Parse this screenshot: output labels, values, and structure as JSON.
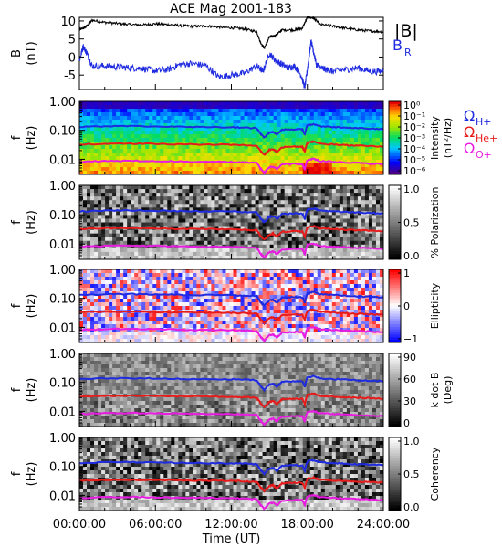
{
  "chart_data": [
    {
      "type": "line",
      "title": "ACE Mag 2001-183",
      "ylabel": "B",
      "yunit": "(nT)",
      "ylim": [
        -9,
        11
      ],
      "yticks": [
        10,
        5,
        0,
        -5
      ],
      "xlim": [
        0,
        24
      ],
      "series": [
        {
          "name": "|B|",
          "color": "#000000",
          "x": [
            0,
            0.5,
            1,
            2,
            3,
            4,
            5,
            6,
            7,
            8,
            9,
            10,
            11,
            12,
            13,
            14,
            14.3,
            14.6,
            15,
            15.5,
            16,
            17,
            17.6,
            18,
            18.5,
            19,
            20,
            21,
            22,
            23,
            24
          ],
          "y": [
            7.5,
            8.3,
            10.2,
            9.6,
            9.3,
            9.0,
            8.9,
            9.2,
            9.0,
            8.7,
            8.5,
            8.6,
            8.3,
            8.1,
            7.8,
            7.0,
            4.0,
            2.5,
            5.5,
            6.0,
            7.5,
            7.5,
            8.0,
            11.0,
            10.8,
            9.0,
            8.6,
            8.0,
            7.5,
            7.2,
            7.0
          ]
        },
        {
          "name": "B",
          "subscript": "R",
          "color": "#1f2be0",
          "x": [
            0,
            0.3,
            0.6,
            1,
            2,
            3,
            4,
            5,
            6,
            7,
            8,
            9,
            10,
            11,
            12,
            13,
            14,
            14.5,
            15,
            15.5,
            16,
            16.5,
            17,
            17.5,
            17.8,
            18,
            18.3,
            18.7,
            19,
            19.5,
            20,
            21,
            22,
            23,
            24
          ],
          "y": [
            -1,
            3,
            1,
            -2.5,
            -2.5,
            -2.8,
            -3.0,
            -3.2,
            -3.8,
            -3.5,
            -2.0,
            -1.8,
            -2.5,
            -5.5,
            -5.0,
            -4.5,
            -2.5,
            -4.0,
            1.0,
            -1.0,
            -2.0,
            -3.0,
            -2.5,
            -5.0,
            -8.5,
            -3.5,
            4.5,
            -2.0,
            -3.0,
            -3.5,
            -4.0,
            -3.5,
            -3.0,
            -4.0,
            -4.0
          ]
        }
      ],
      "legend": [
        "|B|",
        "B"
      ],
      "legend_placement": "right"
    },
    {
      "type": "heatmap",
      "ylabel": "f",
      "yunit": "(Hz)",
      "ylim": [
        0.003,
        1.0
      ],
      "yscale": "log",
      "yticks": [
        "1.00",
        "0.10",
        "0.01"
      ],
      "colorbar_label": "Intensity",
      "colorbar_unit": "(nT²/Hz)",
      "colorbar_ticks": [
        "10⁰",
        "10⁻¹",
        "10⁻²",
        "10⁻³",
        "10⁻⁴",
        "10⁻⁵",
        "10⁻⁶"
      ],
      "colormap": "rainbow"
    },
    {
      "type": "heatmap",
      "ylabel": "f",
      "yunit": "(Hz)",
      "ylim": [
        0.003,
        1.0
      ],
      "yscale": "log",
      "yticks": [
        "1.00",
        "0.10",
        "0.01"
      ],
      "colorbar_label": "% Polarization",
      "colorbar_ticks": [
        "1.0",
        "0.5",
        "0.0"
      ],
      "colormap": "gray"
    },
    {
      "type": "heatmap",
      "ylabel": "f",
      "yunit": "(Hz)",
      "ylim": [
        0.003,
        1.0
      ],
      "yscale": "log",
      "yticks": [
        "1.00",
        "0.10",
        "0.01"
      ],
      "colorbar_label": "Ellipticity",
      "colorbar_ticks": [
        "1",
        "0",
        "−1"
      ],
      "colormap": "bwr"
    },
    {
      "type": "heatmap",
      "ylabel": "f",
      "yunit": "(Hz)",
      "ylim": [
        0.003,
        1.0
      ],
      "yscale": "log",
      "yticks": [
        "1.00",
        "0.10",
        "0.01"
      ],
      "colorbar_label": "k dot B",
      "colorbar_unit": "(Deg)",
      "colorbar_ticks": [
        "90",
        "60",
        "30",
        "0"
      ],
      "colormap": "gray"
    },
    {
      "type": "heatmap",
      "ylabel": "f",
      "yunit": "(Hz)",
      "ylim": [
        0.003,
        1.0
      ],
      "yscale": "log",
      "yticks": [
        "1.00",
        "0.10",
        "0.01"
      ],
      "colorbar_label": "Coherency",
      "colorbar_ticks": [
        "1.0",
        "0.5",
        "0.0"
      ],
      "colormap": "gray"
    }
  ],
  "gyro_lines": [
    {
      "symbol": "Ω",
      "subscript": "H+",
      "color": "#1f2be0",
      "x": [
        0,
        2,
        4,
        6,
        8,
        10,
        12,
        13,
        14,
        14.3,
        14.6,
        15,
        15.3,
        15.6,
        16,
        17,
        17.6,
        17.8,
        18,
        18.5,
        19,
        20,
        21,
        22,
        23,
        24
      ],
      "y": [
        0.13,
        0.138,
        0.14,
        0.137,
        0.132,
        0.13,
        0.128,
        0.124,
        0.118,
        0.075,
        0.055,
        0.085,
        0.09,
        0.07,
        0.105,
        0.11,
        0.108,
        0.07,
        0.15,
        0.165,
        0.138,
        0.13,
        0.125,
        0.118,
        0.114,
        0.11
      ]
    },
    {
      "symbol": "Ω",
      "subscript": "He+",
      "color": "#e81b1b",
      "x": [
        0,
        2,
        4,
        6,
        8,
        10,
        12,
        13,
        14,
        14.3,
        14.6,
        15,
        15.3,
        15.6,
        16,
        17,
        17.6,
        17.8,
        18,
        18.5,
        19,
        20,
        21,
        22,
        23,
        24
      ],
      "y": [
        0.0325,
        0.0345,
        0.035,
        0.034,
        0.033,
        0.0325,
        0.032,
        0.031,
        0.0295,
        0.019,
        0.014,
        0.021,
        0.0225,
        0.0175,
        0.026,
        0.0275,
        0.027,
        0.0175,
        0.0375,
        0.041,
        0.0345,
        0.0325,
        0.031,
        0.0295,
        0.0285,
        0.0275
      ]
    },
    {
      "symbol": "Ω",
      "subscript": "O+",
      "color": "#e81be0",
      "x": [
        0,
        2,
        4,
        6,
        8,
        10,
        12,
        13,
        14,
        14.3,
        14.6,
        15,
        15.3,
        15.6,
        16,
        17,
        17.6,
        17.8,
        18,
        18.5,
        19,
        20,
        21,
        22,
        23,
        24
      ],
      "y": [
        0.0081,
        0.0086,
        0.0088,
        0.0086,
        0.0083,
        0.0081,
        0.008,
        0.0078,
        0.0074,
        0.0047,
        0.0034,
        0.0053,
        0.0056,
        0.0044,
        0.0066,
        0.0069,
        0.0068,
        0.0044,
        0.0094,
        0.0103,
        0.0086,
        0.0081,
        0.0078,
        0.0074,
        0.0071,
        0.0069
      ]
    }
  ],
  "x_ticks": [
    "00:00:00",
    "06:00:00",
    "12:00:00",
    "18:00:00",
    "24:00:00"
  ],
  "x_tick_values": [
    0,
    6,
    12,
    18,
    24
  ],
  "x_label": "Time (UT)"
}
